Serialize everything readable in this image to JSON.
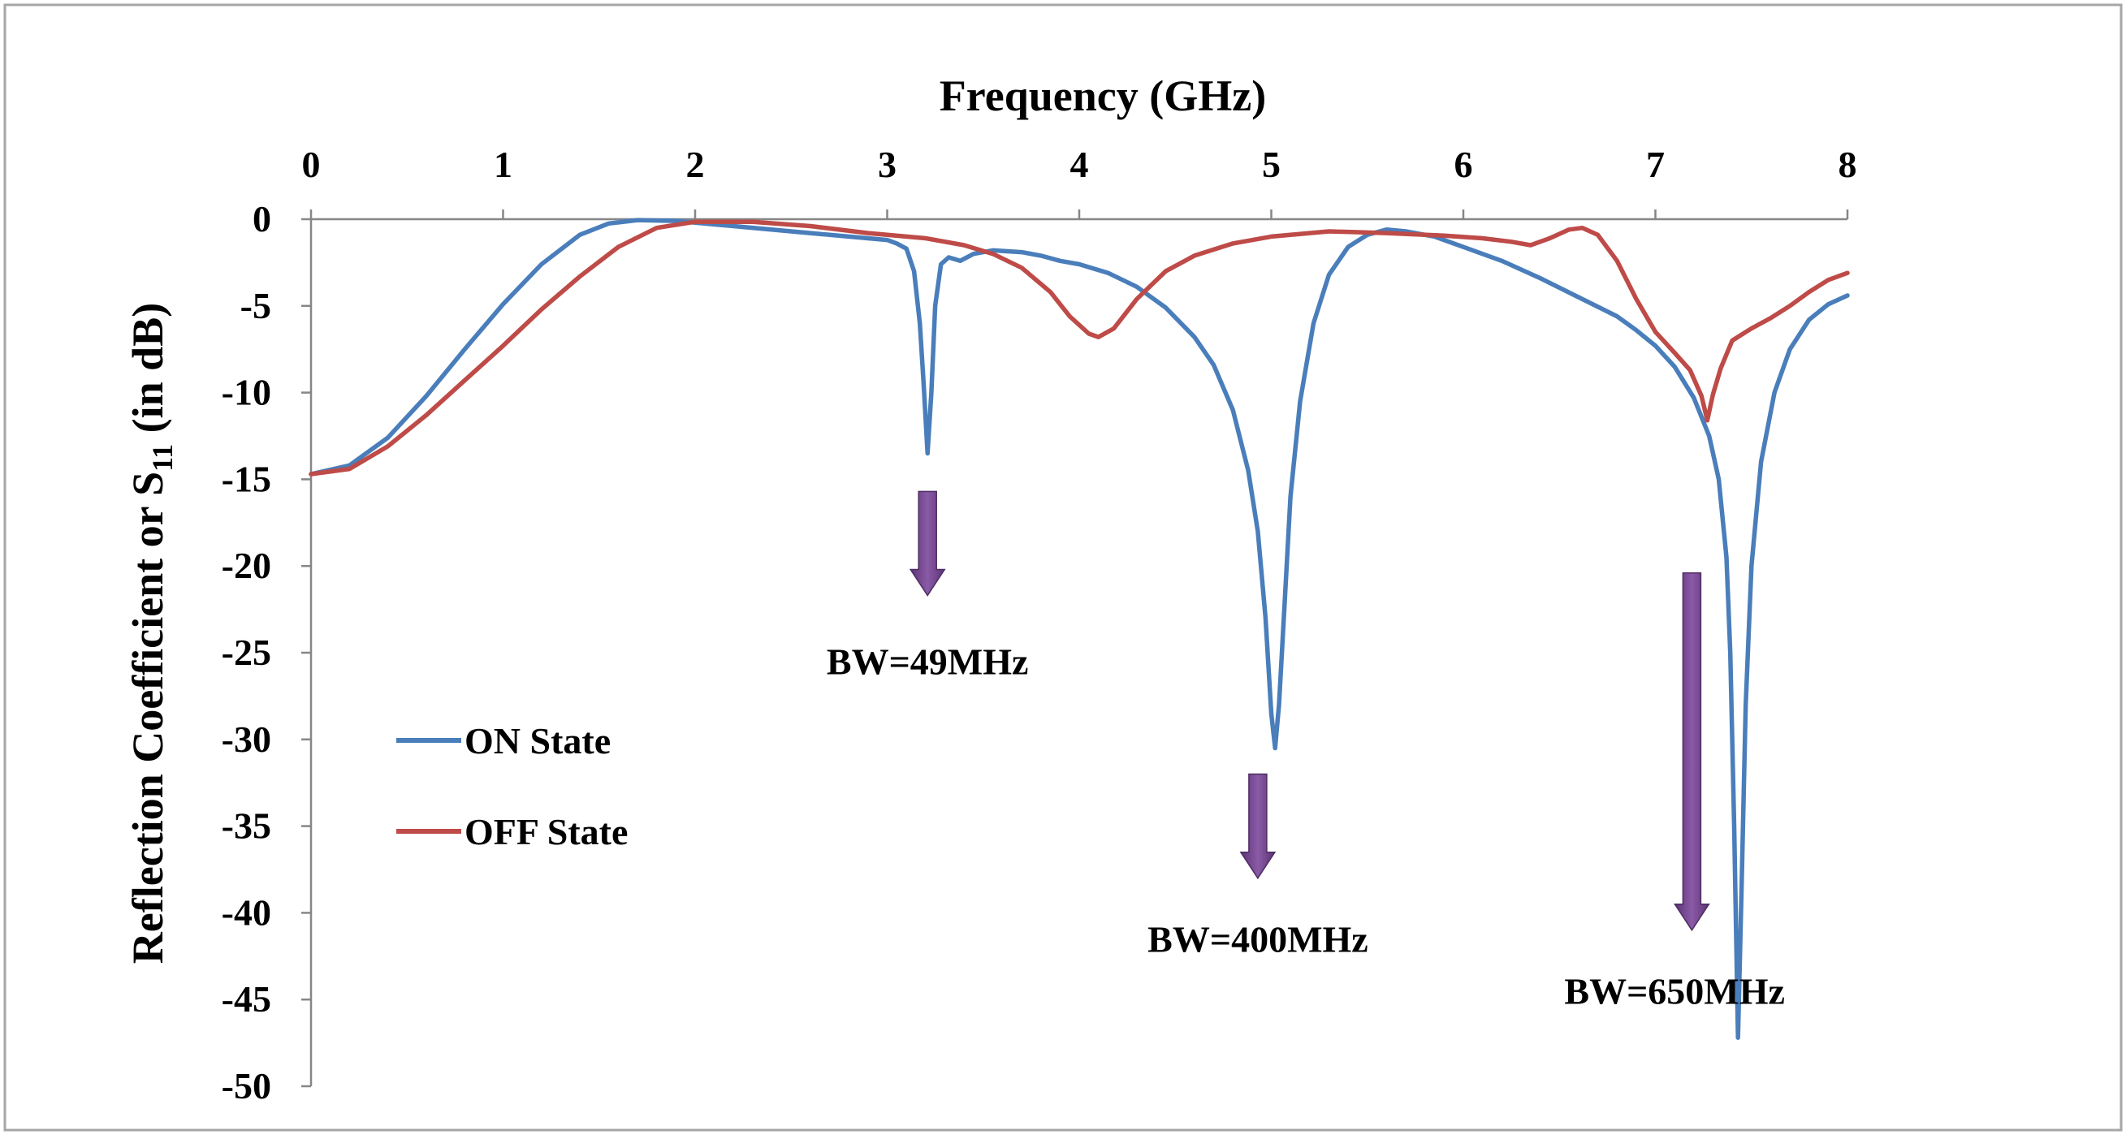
{
  "chart_data": {
    "type": "line",
    "title": "",
    "xlabel": "Frequency (GHz)",
    "ylabel_main": "Reflection Coefficient  or S",
    "ylabel_sub": "11",
    "ylabel_tail": " (in dB)",
    "xlim": [
      0,
      8
    ],
    "ylim": [
      -50,
      0
    ],
    "x_ticks": [
      0,
      1,
      2,
      3,
      4,
      5,
      6,
      7,
      8
    ],
    "y_ticks": [
      0,
      -5,
      -10,
      -15,
      -20,
      -25,
      -30,
      -35,
      -40,
      -45,
      -50
    ],
    "grid": false,
    "legend_position": "left-middle",
    "colors": {
      "on": "#4a7ebb",
      "off": "#be4b48",
      "arrow": "#7a4c94",
      "axis": "#868686",
      "frame": "#a6a6a6"
    },
    "series": [
      {
        "name": "ON State",
        "color": "#4a7ebb",
        "points": [
          [
            0,
            -14.7
          ],
          [
            0.2,
            -14.2
          ],
          [
            0.4,
            -12.6
          ],
          [
            0.6,
            -10.2
          ],
          [
            0.8,
            -7.5
          ],
          [
            1.0,
            -4.9
          ],
          [
            1.2,
            -2.6
          ],
          [
            1.4,
            -0.9
          ],
          [
            1.55,
            -0.25
          ],
          [
            1.7,
            -0.05
          ],
          [
            1.9,
            -0.1
          ],
          [
            2.0,
            -0.2
          ],
          [
            2.2,
            -0.4
          ],
          [
            2.5,
            -0.7
          ],
          [
            2.8,
            -1.0
          ],
          [
            3.0,
            -1.2
          ],
          [
            3.05,
            -1.4
          ],
          [
            3.1,
            -1.7
          ],
          [
            3.14,
            -3.0
          ],
          [
            3.17,
            -6.0
          ],
          [
            3.19,
            -9.5
          ],
          [
            3.21,
            -13.5
          ],
          [
            3.23,
            -10.0
          ],
          [
            3.25,
            -5.0
          ],
          [
            3.28,
            -2.6
          ],
          [
            3.32,
            -2.2
          ],
          [
            3.38,
            -2.4
          ],
          [
            3.45,
            -2.0
          ],
          [
            3.55,
            -1.8
          ],
          [
            3.7,
            -1.9
          ],
          [
            3.8,
            -2.1
          ],
          [
            3.9,
            -2.4
          ],
          [
            4.0,
            -2.6
          ],
          [
            4.15,
            -3.1
          ],
          [
            4.3,
            -3.9
          ],
          [
            4.45,
            -5.1
          ],
          [
            4.6,
            -6.8
          ],
          [
            4.7,
            -8.4
          ],
          [
            4.8,
            -11.0
          ],
          [
            4.88,
            -14.5
          ],
          [
            4.93,
            -18.0
          ],
          [
            4.97,
            -23.0
          ],
          [
            5.0,
            -28.5
          ],
          [
            5.02,
            -30.5
          ],
          [
            5.04,
            -28.0
          ],
          [
            5.07,
            -22.0
          ],
          [
            5.1,
            -16.0
          ],
          [
            5.15,
            -10.5
          ],
          [
            5.22,
            -6.0
          ],
          [
            5.3,
            -3.2
          ],
          [
            5.4,
            -1.6
          ],
          [
            5.5,
            -0.9
          ],
          [
            5.6,
            -0.6
          ],
          [
            5.7,
            -0.7
          ],
          [
            5.85,
            -1.0
          ],
          [
            6.0,
            -1.6
          ],
          [
            6.2,
            -2.4
          ],
          [
            6.4,
            -3.4
          ],
          [
            6.6,
            -4.5
          ],
          [
            6.8,
            -5.6
          ],
          [
            6.9,
            -6.4
          ],
          [
            7.0,
            -7.3
          ],
          [
            7.1,
            -8.5
          ],
          [
            7.2,
            -10.3
          ],
          [
            7.28,
            -12.5
          ],
          [
            7.33,
            -15.0
          ],
          [
            7.37,
            -19.5
          ],
          [
            7.39,
            -25.0
          ],
          [
            7.41,
            -35.0
          ],
          [
            7.43,
            -47.2
          ],
          [
            7.45,
            -38.0
          ],
          [
            7.47,
            -28.0
          ],
          [
            7.5,
            -20.0
          ],
          [
            7.55,
            -14.0
          ],
          [
            7.62,
            -10.0
          ],
          [
            7.7,
            -7.5
          ],
          [
            7.8,
            -5.8
          ],
          [
            7.9,
            -4.9
          ],
          [
            8.0,
            -4.4
          ]
        ]
      },
      {
        "name": "OFF State",
        "color": "#be4b48",
        "points": [
          [
            0,
            -14.7
          ],
          [
            0.2,
            -14.4
          ],
          [
            0.4,
            -13.1
          ],
          [
            0.6,
            -11.3
          ],
          [
            0.8,
            -9.3
          ],
          [
            1.0,
            -7.3
          ],
          [
            1.2,
            -5.2
          ],
          [
            1.4,
            -3.3
          ],
          [
            1.6,
            -1.6
          ],
          [
            1.8,
            -0.5
          ],
          [
            2.0,
            -0.15
          ],
          [
            2.3,
            -0.15
          ],
          [
            2.6,
            -0.4
          ],
          [
            2.9,
            -0.8
          ],
          [
            3.2,
            -1.1
          ],
          [
            3.4,
            -1.5
          ],
          [
            3.55,
            -2.0
          ],
          [
            3.7,
            -2.8
          ],
          [
            3.85,
            -4.2
          ],
          [
            3.95,
            -5.6
          ],
          [
            4.05,
            -6.6
          ],
          [
            4.1,
            -6.8
          ],
          [
            4.18,
            -6.3
          ],
          [
            4.3,
            -4.6
          ],
          [
            4.45,
            -3.0
          ],
          [
            4.6,
            -2.1
          ],
          [
            4.8,
            -1.4
          ],
          [
            5.0,
            -1.0
          ],
          [
            5.3,
            -0.7
          ],
          [
            5.6,
            -0.8
          ],
          [
            5.9,
            -0.95
          ],
          [
            6.1,
            -1.1
          ],
          [
            6.25,
            -1.3
          ],
          [
            6.35,
            -1.5
          ],
          [
            6.45,
            -1.1
          ],
          [
            6.55,
            -0.6
          ],
          [
            6.62,
            -0.5
          ],
          [
            6.7,
            -0.9
          ],
          [
            6.8,
            -2.4
          ],
          [
            6.9,
            -4.6
          ],
          [
            7.0,
            -6.5
          ],
          [
            7.1,
            -7.7
          ],
          [
            7.18,
            -8.7
          ],
          [
            7.24,
            -10.2
          ],
          [
            7.27,
            -11.6
          ],
          [
            7.3,
            -10.1
          ],
          [
            7.34,
            -8.6
          ],
          [
            7.4,
            -7.0
          ],
          [
            7.5,
            -6.3
          ],
          [
            7.6,
            -5.7
          ],
          [
            7.7,
            -5.0
          ],
          [
            7.8,
            -4.2
          ],
          [
            7.9,
            -3.5
          ],
          [
            8.0,
            -3.1
          ]
        ]
      }
    ],
    "annotations": [
      {
        "text": "BW=49MHz",
        "arrow_x": 3.21,
        "arrow_from": -15.7,
        "arrow_to": -21.7,
        "label_x": 3.21,
        "label_y": -25.5
      },
      {
        "text": "BW=400MHz",
        "arrow_x": 4.93,
        "arrow_from": -32.0,
        "arrow_to": -38.0,
        "label_x": 4.93,
        "label_y": -41.5
      },
      {
        "text": "BW=650MHz",
        "arrow_x": 7.19,
        "arrow_from": -20.4,
        "arrow_to": -41.0,
        "label_x": 7.1,
        "label_y": -44.5
      }
    ]
  }
}
